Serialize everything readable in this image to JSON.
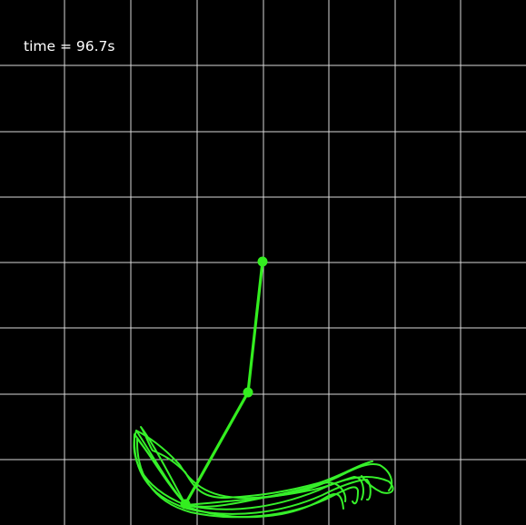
{
  "simulation": {
    "time_label": "time = 96.7s"
  },
  "colors": {
    "background": "#000000",
    "grid": "#d9d9d9",
    "pendulum": "#33ee1f",
    "trace": "#36f02a",
    "text": "#ffffff"
  },
  "icons": {
    "pivot": "pivot-dot",
    "joint": "joint-dot",
    "bob": "bob-dot"
  }
}
